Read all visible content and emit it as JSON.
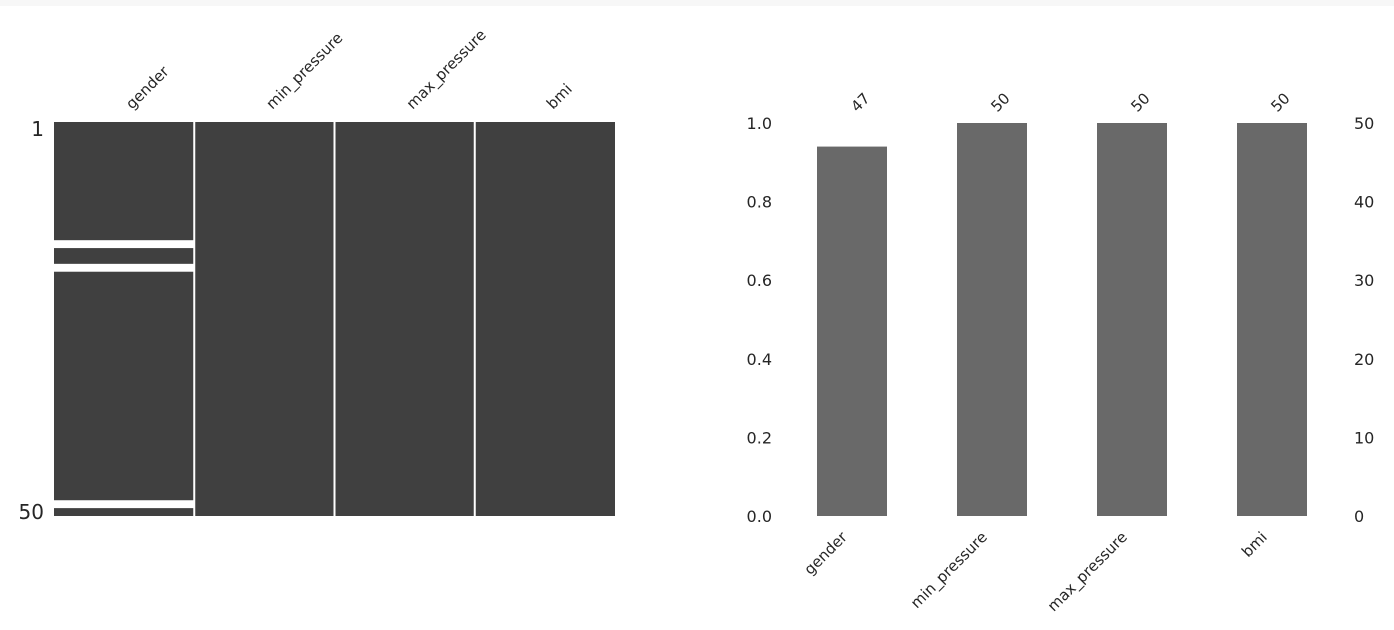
{
  "chart_data": [
    {
      "type": "heatmap",
      "title": "",
      "columns": [
        "gender",
        "min_pressure",
        "max_pressure",
        "bmi"
      ],
      "row_count": 50,
      "row_labels": [
        "1",
        "50"
      ],
      "missing_rows": {
        "gender": [
          16,
          19,
          49
        ],
        "min_pressure": [],
        "max_pressure": [],
        "bmi": []
      },
      "colors": {
        "present": "#404040",
        "missing": "#ffffff"
      }
    },
    {
      "type": "bar",
      "title": "",
      "categories": [
        "gender",
        "min_pressure",
        "max_pressure",
        "bmi"
      ],
      "values": [
        47,
        50,
        50,
        50
      ],
      "data_labels": [
        "47",
        "50",
        "50",
        "50"
      ],
      "ylim_left": [
        0,
        1.0
      ],
      "left_ticks": [
        "0.0",
        "0.2",
        "0.4",
        "0.6",
        "0.8",
        "1.0"
      ],
      "ylim_right": [
        0,
        50
      ],
      "right_ticks": [
        "0",
        "10",
        "20",
        "30",
        "40",
        "50"
      ],
      "grid": false,
      "color": "#696969"
    }
  ]
}
